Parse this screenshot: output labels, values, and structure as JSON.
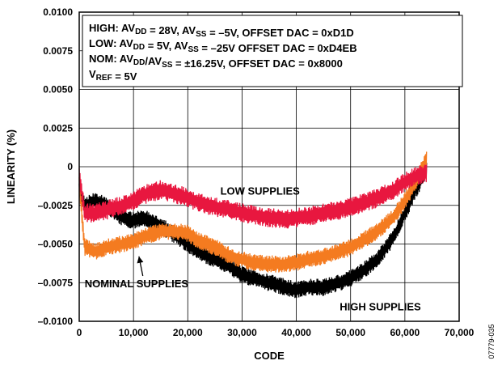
{
  "chart_data": {
    "type": "line",
    "title": "",
    "xlabel": "CODE",
    "ylabel": "LINEARITY (%)",
    "xlim": [
      0,
      70000
    ],
    "ylim": [
      -0.01,
      0.01
    ],
    "x_ticks": [
      0,
      10000,
      20000,
      30000,
      40000,
      50000,
      60000,
      70000
    ],
    "x_tick_labels": [
      "0",
      "10,000",
      "20,000",
      "30,000",
      "40,000",
      "50,000",
      "60,000",
      "70,000"
    ],
    "y_ticks": [
      -0.01,
      -0.0075,
      -0.005,
      -0.0025,
      0,
      0.0025,
      0.005,
      0.0075,
      0.01
    ],
    "y_tick_labels": [
      "–0.0100",
      "–0.0075",
      "–0.0050",
      "–0.0025",
      "0",
      "0.0025",
      "0.0050",
      "0.0075",
      "0.0100"
    ],
    "grid": true,
    "legend_position": "top-left",
    "legend_lines": [
      "HIGH: AV_DD = 28V, AV_SS = –5V, OFFSET DAC = 0xD1D",
      "LOW: AV_DD = 5V, AV_SS = –25V OFFSET DAC = 0xD4EB",
      "NOM: AV_DD/AV_SS = ±16.25V, OFFSET DAC = 0x8000",
      "V_REF = 5V"
    ],
    "series": [
      {
        "name": "HIGH SUPPLIES",
        "color": "#000000",
        "x": [
          0,
          1000,
          3000,
          5000,
          8000,
          10000,
          12000,
          15000,
          18000,
          20000,
          22000,
          25000,
          28000,
          30000,
          32000,
          35000,
          38000,
          40000,
          42000,
          45000,
          48000,
          50000,
          52000,
          55000,
          58000,
          60000,
          62000,
          64000
        ],
        "y": [
          -0.0015,
          -0.0025,
          -0.0022,
          -0.0025,
          -0.0033,
          -0.0035,
          -0.0033,
          -0.0038,
          -0.0045,
          -0.005,
          -0.0055,
          -0.006,
          -0.0065,
          -0.007,
          -0.0072,
          -0.0075,
          -0.0078,
          -0.008,
          -0.0078,
          -0.0078,
          -0.0075,
          -0.0072,
          -0.0068,
          -0.006,
          -0.0045,
          -0.003,
          -0.0015,
          -0.0002
        ],
        "amplitude": 0.0008
      },
      {
        "name": "LOW SUPPLIES",
        "color": "#e8173f",
        "x": [
          0,
          1000,
          3000,
          5000,
          8000,
          10000,
          12000,
          15000,
          18000,
          20000,
          22000,
          25000,
          28000,
          30000,
          32000,
          35000,
          38000,
          40000,
          42000,
          45000,
          48000,
          50000,
          52000,
          55000,
          58000,
          60000,
          62000,
          64000
        ],
        "y": [
          -0.0005,
          -0.003,
          -0.003,
          -0.0028,
          -0.0025,
          -0.0022,
          -0.0018,
          -0.0015,
          -0.0018,
          -0.002,
          -0.0023,
          -0.0026,
          -0.0028,
          -0.003,
          -0.0031,
          -0.0033,
          -0.0034,
          -0.0033,
          -0.0032,
          -0.003,
          -0.0028,
          -0.0026,
          -0.0024,
          -0.002,
          -0.0015,
          -0.001,
          -0.0006,
          -0.0004
        ],
        "amplitude": 0.0009
      },
      {
        "name": "NOMINAL SUPPLIES",
        "color": "#f47b20",
        "x": [
          0,
          1000,
          3000,
          5000,
          8000,
          10000,
          12000,
          15000,
          18000,
          20000,
          22000,
          25000,
          28000,
          30000,
          32000,
          35000,
          38000,
          40000,
          42000,
          45000,
          48000,
          50000,
          52000,
          55000,
          58000,
          60000,
          62000,
          64000
        ],
        "y": [
          -0.001,
          -0.0052,
          -0.0055,
          -0.0052,
          -0.005,
          -0.0048,
          -0.0045,
          -0.0042,
          -0.0042,
          -0.0043,
          -0.0048,
          -0.0052,
          -0.0058,
          -0.006,
          -0.0062,
          -0.0063,
          -0.0063,
          -0.0062,
          -0.006,
          -0.0058,
          -0.0055,
          -0.0052,
          -0.0048,
          -0.0042,
          -0.0032,
          -0.0022,
          -0.001,
          0.0005
        ],
        "amplitude": 0.0008
      }
    ],
    "annotations": [
      {
        "text": "LOW SUPPLIES",
        "x": 26000,
        "y": -0.0018
      },
      {
        "text": "NOMINAL SUPPLIES",
        "x": 1000,
        "y": -0.0078,
        "arrow_to": [
          11000,
          -0.0058
        ]
      },
      {
        "text": "HIGH SUPPLIES",
        "x": 48000,
        "y": -0.0093
      }
    ],
    "figure_id": "07779-035"
  }
}
